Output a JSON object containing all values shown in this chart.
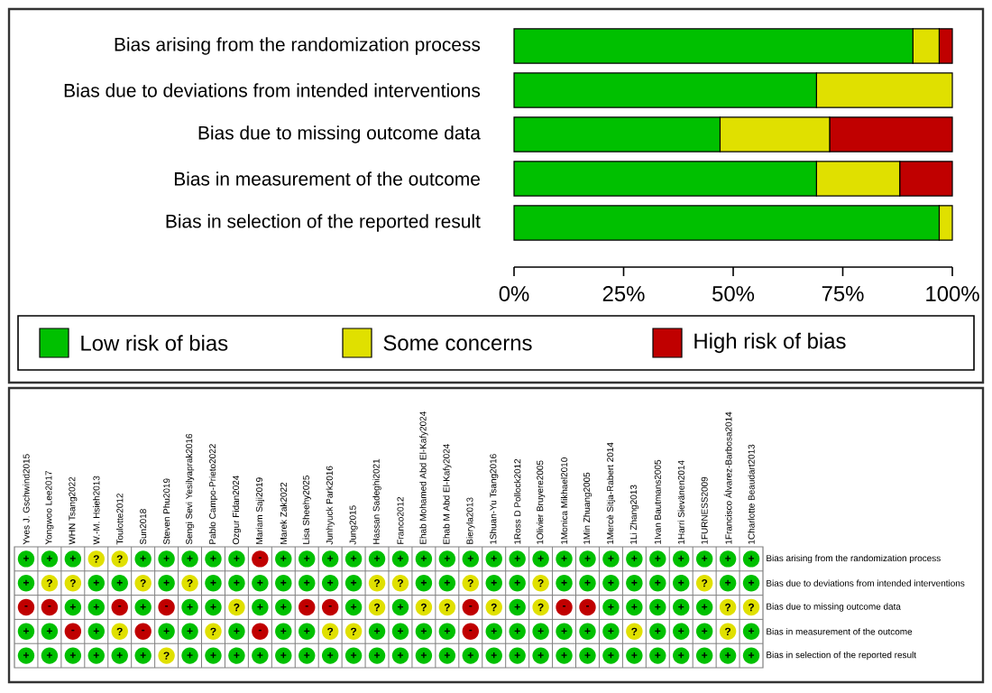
{
  "chart_data": [
    {
      "type": "bar",
      "orientation": "horizontal",
      "stacked": true,
      "categories": [
        "Bias arising from the randomization process",
        "Bias due to deviations from intended interventions",
        "Bias due to missing outcome data",
        "Bias in measurement of the outcome",
        "Bias in selection of the reported result"
      ],
      "series": [
        {
          "name": "Low risk of bias",
          "color": "#00c000",
          "values": [
            91,
            69,
            47,
            69,
            97
          ]
        },
        {
          "name": "Some concerns",
          "color": "#e0e000",
          "values": [
            6,
            31,
            25,
            19,
            3
          ]
        },
        {
          "name": "High risk of bias",
          "color": "#c00000",
          "values": [
            3,
            0,
            28,
            12,
            0
          ]
        }
      ],
      "xlim": [
        0,
        100
      ],
      "xticks": [
        {
          "value": 0,
          "label": "0%"
        },
        {
          "value": 25,
          "label": "25%"
        },
        {
          "value": 50,
          "label": "50%"
        },
        {
          "value": 75,
          "label": "75%"
        },
        {
          "value": 100,
          "label": "100%"
        }
      ],
      "legend": "bottom"
    },
    {
      "type": "heatmap",
      "categories": [
        "Yves J. Gschwind2015",
        "Yongwoo Lee2017",
        "WHN Tsang2022",
        "W.-M. Hsieh2013",
        "Toulotte2012",
        "Sun2018",
        "Steven Phu2019",
        "Sengi Sevi Yesilyaprak2016",
        "Pablo Campo-Prieto2022",
        "Ozgur Fidan2024",
        "Mariam Saji2019",
        "Marek Zak2022",
        "Lisa Sheehy2025",
        "Junhyuck Park2016",
        "Jung2015",
        "Hassan Sadeghi2021",
        "Franco2012",
        "Ehab Mohamed Abd El-Kafy2024",
        "Ehab M Abd El-Kafy2024",
        "Bieryla2013",
        "1Shuan-Yu Tsang2016",
        "1Ross D Pollock2012",
        "1Olivier Bruyere2005",
        "1Monica Mikhael2010",
        "1Min Zhuang2005",
        "1Mercè Sitja-Rabert 2014",
        "1Li Zhang2013",
        "1Ivan Bautmans2005",
        "1Harri Sievänen2014",
        "1FURNESS2009",
        "1Francisco Álvarez-Barbosa2014",
        "1Charlotte Beaudart2013"
      ],
      "y_categories": [
        "Bias arising from the randomization process",
        "Bias due to deviations from intended interventions",
        "Bias due to missing outcome data",
        "Bias in measurement of the outcome",
        "Bias in selection of the reported result"
      ],
      "colors": [
        "#00c000",
        "#e0e000",
        "#c00000"
      ],
      "cells": [
        [
          "+",
          "+",
          "+",
          "?",
          "?",
          "+",
          "+",
          "+",
          "+",
          "+",
          "-",
          "+",
          "+",
          "+",
          "+",
          "+",
          "+",
          "+",
          "+",
          "+",
          "+",
          "+",
          "+",
          "+",
          "+",
          "+",
          "+",
          "+",
          "+",
          "+",
          "+",
          "+"
        ],
        [
          "+",
          "?",
          "?",
          "+",
          "+",
          "?",
          "+",
          "?",
          "+",
          "+",
          "+",
          "+",
          "+",
          "+",
          "+",
          "?",
          "?",
          "+",
          "+",
          "?",
          "+",
          "+",
          "?",
          "+",
          "+",
          "+",
          "+",
          "+",
          "+",
          "?",
          "+",
          "+"
        ],
        [
          "-",
          "-",
          "+",
          "+",
          "-",
          "+",
          "-",
          "+",
          "+",
          "?",
          "+",
          "+",
          "-",
          "-",
          "+",
          "?",
          "+",
          "?",
          "?",
          "-",
          "?",
          "+",
          "?",
          "-",
          "-",
          "+",
          "+",
          "+",
          "+",
          "+",
          "?",
          "?"
        ],
        [
          "+",
          "+",
          "-",
          "+",
          "?",
          "-",
          "+",
          "+",
          "?",
          "+",
          "-",
          "+",
          "+",
          "?",
          "?",
          "+",
          "+",
          "+",
          "+",
          "-",
          "+",
          "+",
          "+",
          "+",
          "+",
          "+",
          "?",
          "+",
          "+",
          "+",
          "?",
          "+"
        ],
        [
          "+",
          "+",
          "+",
          "+",
          "+",
          "+",
          "?",
          "+",
          "+",
          "+",
          "+",
          "+",
          "+",
          "+",
          "+",
          "+",
          "+",
          "+",
          "+",
          "+",
          "+",
          "+",
          "+",
          "+",
          "+",
          "+",
          "+",
          "+",
          "+",
          "+",
          "+",
          "+"
        ]
      ]
    }
  ]
}
